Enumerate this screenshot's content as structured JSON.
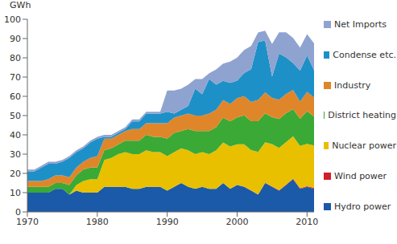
{
  "chart_data": {
    "type": "area",
    "stacked": true,
    "y_label": "GWh",
    "legend": "right",
    "grid": false,
    "x": [
      1970,
      1971,
      1972,
      1973,
      1974,
      1975,
      1976,
      1977,
      1978,
      1979,
      1980,
      1981,
      1982,
      1983,
      1984,
      1985,
      1986,
      1987,
      1988,
      1989,
      1990,
      1991,
      1992,
      1993,
      1994,
      1995,
      1996,
      1997,
      1998,
      1999,
      2000,
      2001,
      2002,
      2003,
      2004,
      2005,
      2006,
      2007,
      2008,
      2009,
      2010,
      2011
    ],
    "xlim": [
      1970,
      2011
    ],
    "xticks": [
      1970,
      1980,
      1990,
      2000,
      2010
    ],
    "ylim": [
      0,
      100
    ],
    "yticks": [
      0,
      10,
      20,
      30,
      40,
      50,
      60,
      70,
      80,
      90,
      100
    ],
    "series": [
      {
        "name": "Hydro power",
        "color": "#1a5aa8",
        "values": [
          10,
          10,
          10,
          10,
          12,
          12,
          9,
          11,
          10,
          10,
          10,
          13,
          13,
          13,
          13,
          12,
          12,
          13,
          13,
          13,
          11,
          13,
          15,
          13,
          12,
          13,
          12,
          12,
          15,
          12,
          14,
          13,
          11,
          9,
          15,
          13,
          11,
          14,
          17,
          12,
          13,
          12
        ]
      },
      {
        "name": "Wind power",
        "color": "#d0202a",
        "values": [
          0,
          0,
          0,
          0,
          0,
          0,
          0,
          0,
          0,
          0,
          0,
          0,
          0,
          0,
          0,
          0,
          0,
          0,
          0,
          0,
          0,
          0,
          0,
          0,
          0,
          0,
          0,
          0,
          0,
          0,
          0.1,
          0.1,
          0.1,
          0.1,
          0.1,
          0.2,
          0.2,
          0.2,
          0.3,
          0.3,
          0.3,
          0.5
        ]
      },
      {
        "name": "Nuclear power",
        "color": "#e8c000",
        "values": [
          0,
          0,
          0,
          0,
          0,
          0,
          0,
          3,
          6,
          7,
          7,
          14,
          15,
          17,
          18,
          18,
          18,
          19,
          18,
          18,
          18,
          18,
          18,
          19,
          18,
          18,
          18,
          20,
          21,
          22,
          21,
          22,
          21,
          22,
          21,
          22,
          22,
          22,
          22,
          22,
          22,
          22
        ]
      },
      {
        "name": "District heating",
        "color": "#3aa935",
        "values": [
          3,
          3,
          3,
          3,
          3,
          3,
          5,
          5,
          6,
          6,
          6,
          5,
          5,
          5,
          6,
          7,
          7,
          8,
          8,
          8,
          9,
          10,
          9,
          11,
          12,
          11,
          12,
          12,
          13,
          13,
          14,
          15,
          15,
          16,
          15,
          14,
          15,
          15,
          14,
          14,
          17,
          15
        ]
      },
      {
        "name": "Industry",
        "color": "#e0862a",
        "values": [
          3,
          3,
          3,
          4,
          4,
          4,
          4,
          4,
          4,
          5,
          6,
          6,
          5,
          5,
          5,
          6,
          6,
          6,
          7,
          7,
          8,
          8,
          8,
          8,
          8,
          8,
          9,
          9,
          9,
          9,
          10,
          10,
          10,
          11,
          11,
          10,
          10,
          10,
          10,
          9,
          10,
          10
        ]
      },
      {
        "name": "Condense etc.",
        "color": "#1e90c8",
        "values": [
          5,
          5,
          7,
          8,
          6,
          7,
          10,
          8,
          7,
          8,
          9,
          1,
          1,
          1,
          1,
          4,
          4,
          5,
          5,
          5,
          6,
          2,
          3,
          4,
          14,
          11,
          18,
          13,
          10,
          11,
          9,
          12,
          17,
          30,
          27,
          11,
          24,
          19,
          14,
          16,
          19,
          14
        ]
      },
      {
        "name": "Net Imports",
        "color": "#8fa3d0",
        "values": [
          1,
          1,
          1,
          1,
          1,
          1,
          1,
          1,
          1,
          1,
          1,
          1,
          1,
          1,
          1,
          1,
          1,
          1,
          1,
          1,
          11,
          12,
          11,
          11,
          5,
          8,
          3,
          8,
          9,
          11,
          12,
          12,
          12,
          5,
          5,
          17,
          11,
          13,
          13,
          12,
          11,
          14
        ]
      }
    ]
  }
}
